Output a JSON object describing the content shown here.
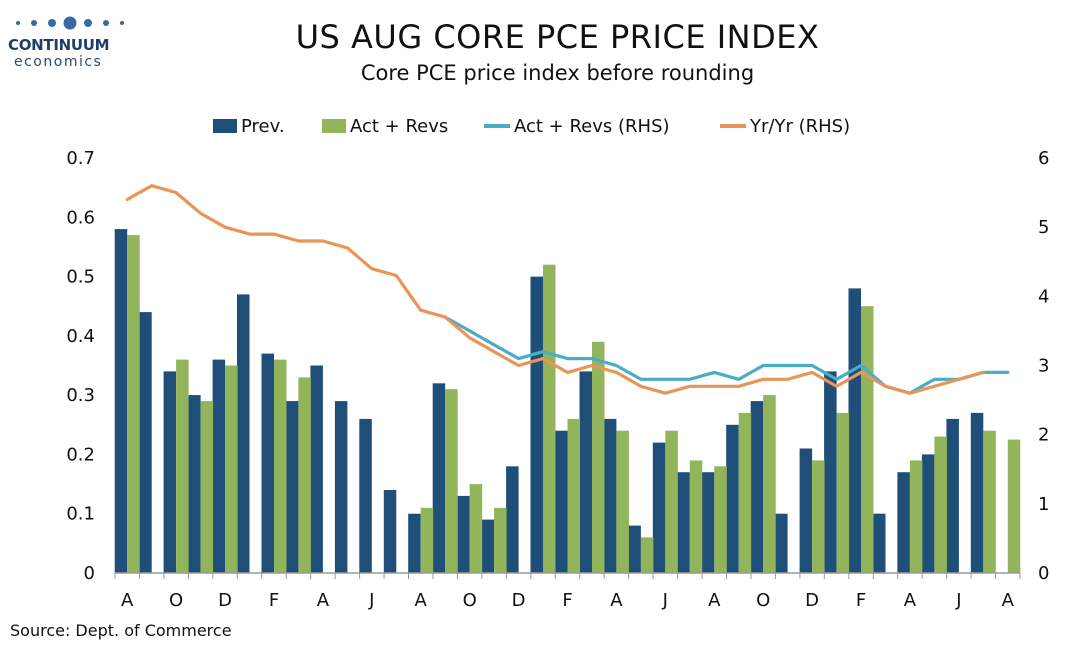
{
  "brand": {
    "name": "CONTINUUM",
    "sub": "economics",
    "colors": {
      "navy": "#1f3d6b",
      "dot": "#3b67a6"
    }
  },
  "chart_data": {
    "type": "bar",
    "title": "US AUG CORE PCE PRICE INDEX",
    "subtitle": "Core PCE price index before rounding",
    "source": "Source: Dept. of Commerce",
    "legend_position": "top-center",
    "grid": false,
    "left_axis": {
      "ylim": [
        0,
        0.7
      ],
      "ticks": [
        "0",
        "0.1",
        "0.2",
        "0.3",
        "0.4",
        "0.5",
        "0.6",
        "0.7"
      ]
    },
    "right_axis": {
      "ylim": [
        0,
        6
      ],
      "ticks": [
        "0",
        "1",
        "2",
        "3",
        "4",
        "5",
        "6"
      ]
    },
    "x_tick_labels": [
      "A",
      "O",
      "D",
      "F",
      "A",
      "J",
      "A",
      "O",
      "D",
      "F",
      "A",
      "J",
      "A",
      "O",
      "D",
      "F",
      "A",
      "J",
      "A"
    ],
    "x_tick_every": 2,
    "series": [
      {
        "name": "Prev.",
        "type": "bar",
        "axis": "left",
        "color": "#1f4e79",
        "values": [
          0.58,
          0.44,
          0.34,
          0.3,
          0.36,
          0.47,
          0.37,
          0.29,
          0.35,
          0.29,
          0.26,
          0.14,
          0.1,
          0.32,
          0.13,
          0.09,
          0.18,
          0.5,
          0.24,
          0.34,
          0.26,
          0.08,
          0.22,
          0.17,
          0.17,
          0.25,
          0.29,
          0.1,
          0.21,
          0.34,
          0.48,
          0.1,
          0.17,
          0.2,
          0.26,
          0.27,
          null
        ]
      },
      {
        "name": "Act + Revs",
        "type": "bar",
        "axis": "left",
        "color": "#92b45a",
        "values": [
          0.57,
          null,
          0.36,
          0.29,
          0.35,
          null,
          0.36,
          0.33,
          null,
          null,
          null,
          null,
          0.11,
          0.31,
          0.15,
          0.11,
          null,
          0.52,
          0.26,
          0.39,
          0.24,
          0.06,
          0.24,
          0.19,
          0.18,
          0.27,
          0.3,
          null,
          0.19,
          0.27,
          0.45,
          null,
          0.19,
          0.23,
          null,
          0.24,
          0.225
        ]
      },
      {
        "name": "Act + Revs (RHS)",
        "type": "line",
        "axis": "right",
        "color": "#4bacc6",
        "values": [
          null,
          null,
          null,
          null,
          null,
          null,
          null,
          null,
          null,
          null,
          null,
          null,
          null,
          3.7,
          3.5,
          3.3,
          3.1,
          3.2,
          3.1,
          3.1,
          3.0,
          2.8,
          2.8,
          2.8,
          2.9,
          2.8,
          3.0,
          3.0,
          3.0,
          2.8,
          3.0,
          2.7,
          2.6,
          2.8,
          2.8,
          2.9,
          2.9
        ]
      },
      {
        "name": "Yr/Yr (RHS)",
        "type": "line",
        "axis": "right",
        "color": "#e8955a",
        "values": [
          5.4,
          5.6,
          5.5,
          5.2,
          5.0,
          4.9,
          4.9,
          4.8,
          4.8,
          4.7,
          4.4,
          4.3,
          3.8,
          3.7,
          3.4,
          3.2,
          3.0,
          3.1,
          2.9,
          3.0,
          2.9,
          2.7,
          2.6,
          2.7,
          2.7,
          2.7,
          2.8,
          2.8,
          2.9,
          2.7,
          2.9,
          2.7,
          2.6,
          2.7,
          2.8,
          2.9,
          null
        ]
      }
    ]
  }
}
